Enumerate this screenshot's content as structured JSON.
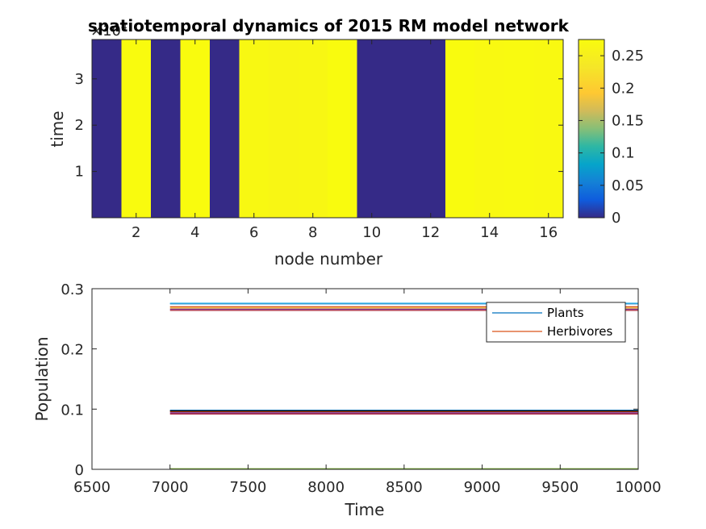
{
  "chart_data": [
    {
      "type": "heatmap",
      "title": "spatiotemporal dynamics of 2015 RM model network",
      "xlabel": "node number",
      "ylabel": "time",
      "y_exponent_label": "×10",
      "y_exponent_power": "4",
      "xlim": [
        0.5,
        16.5
      ],
      "ylim": [
        0,
        3.85
      ],
      "xticks": [
        2,
        4,
        6,
        8,
        10,
        12,
        14,
        16
      ],
      "xtick_labels": [
        "2",
        "4",
        "6",
        "8",
        "10",
        "12",
        "14",
        "16"
      ],
      "yticks": [
        1,
        2,
        3
      ],
      "ytick_labels": [
        "1",
        "2",
        "3"
      ],
      "columns": [
        1,
        2,
        3,
        4,
        5,
        6,
        7,
        8,
        9,
        10,
        11,
        12,
        13,
        14,
        15,
        16
      ],
      "values": [
        0,
        0.275,
        0,
        0.275,
        0,
        0.268,
        0.265,
        0.266,
        0.275,
        0,
        0,
        0,
        0.275,
        0.27,
        0.272,
        0.27
      ],
      "colorbar": {
        "range": [
          0,
          0.275
        ],
        "ticks": [
          0,
          0.05,
          0.1,
          0.15,
          0.2,
          0.25
        ],
        "tick_labels": [
          "0",
          "0.05",
          "0.1",
          "0.15",
          "0.2",
          "0.25"
        ]
      },
      "colormap": "parula"
    },
    {
      "type": "line",
      "xlabel": "Time",
      "ylabel": "Population",
      "xlim": [
        6500,
        10000
      ],
      "ylim": [
        0,
        0.3
      ],
      "xticks": [
        6500,
        7000,
        7500,
        8000,
        8500,
        9000,
        9500,
        10000
      ],
      "xtick_labels": [
        "6500",
        "7000",
        "7500",
        "8000",
        "8500",
        "9000",
        "9500",
        "10000"
      ],
      "yticks": [
        0,
        0.1,
        0.2,
        0.3
      ],
      "ytick_labels": [
        "0",
        "0.1",
        "0.2",
        "0.3"
      ],
      "legend_position": "top-right",
      "legend": [
        "Plants",
        "Herbivores"
      ],
      "series": [
        {
          "name": "Plants",
          "color": "#0072BD",
          "x": [
            7000,
            10000
          ],
          "y": [
            0.275,
            0.275
          ]
        },
        {
          "name": "Herbivores",
          "color": "#D95319",
          "x": [
            7000,
            10000
          ],
          "y": [
            0.27,
            0.27
          ]
        },
        {
          "color": "#EDB120",
          "x": [
            7000,
            10000
          ],
          "y": [
            0.268,
            0.268
          ]
        },
        {
          "color": "#7E2F8E",
          "x": [
            7000,
            10000
          ],
          "y": [
            0.266,
            0.266
          ]
        },
        {
          "color": "#77AC30",
          "x": [
            7000,
            10000
          ],
          "y": [
            0.001,
            0.001
          ]
        },
        {
          "color": "#4DBEEE",
          "x": [
            7000,
            10000
          ],
          "y": [
            0.276,
            0.276
          ]
        },
        {
          "color": "#A2142F",
          "x": [
            7000,
            10000
          ],
          "y": [
            0.264,
            0.264
          ]
        },
        {
          "color": "#0072BD",
          "x": [
            7000,
            10000
          ],
          "y": [
            0.098,
            0.098
          ]
        },
        {
          "color": "#D95319",
          "x": [
            7000,
            10000
          ],
          "y": [
            0.096,
            0.096
          ]
        },
        {
          "color": "#7E2F8E",
          "x": [
            7000,
            10000
          ],
          "y": [
            0.094,
            0.094
          ]
        },
        {
          "color": "#A2142F",
          "x": [
            7000,
            10000
          ],
          "y": [
            0.092,
            0.092
          ]
        },
        {
          "color": "#000000",
          "x": [
            7000,
            10000
          ],
          "y": [
            0.097,
            0.097
          ]
        },
        {
          "color": "#77AC30",
          "x": [
            7000,
            10000
          ],
          "y": [
            0.0005,
            0.0005
          ]
        }
      ]
    }
  ]
}
